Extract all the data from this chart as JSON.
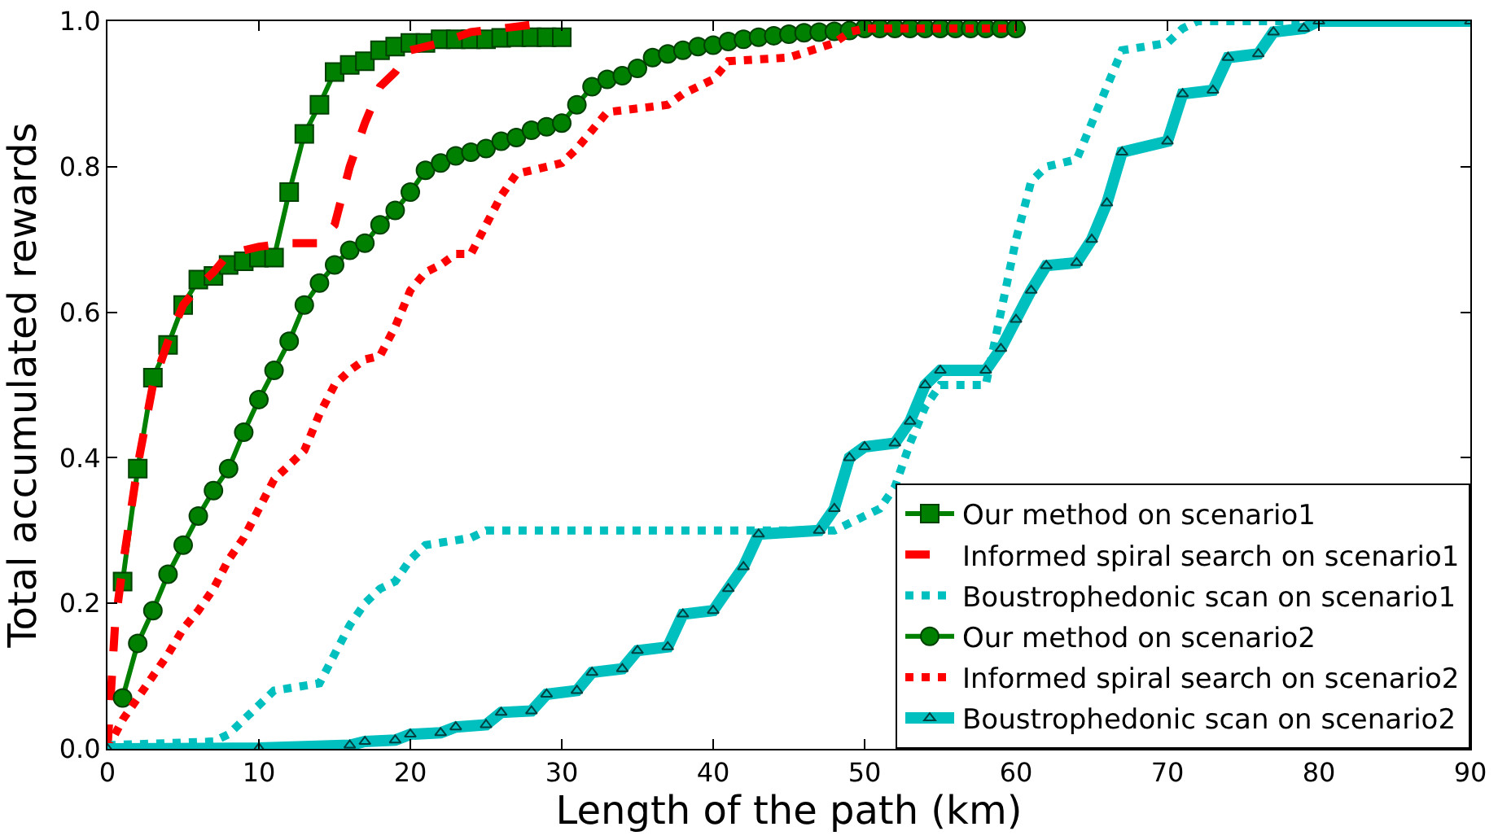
{
  "chart_data": {
    "type": "line",
    "xlabel": "Length of the path (km)",
    "ylabel": "Total accumulated rewards",
    "xlim": [
      0,
      90
    ],
    "xticks": [
      0,
      10,
      20,
      30,
      40,
      50,
      60,
      70,
      80,
      90
    ],
    "ylim": [
      0,
      1
    ],
    "yticks": [
      {
        "value": 0,
        "label": "0.0"
      },
      {
        "value": 0.2,
        "label": "0.2"
      },
      {
        "value": 0.4,
        "label": "0.4"
      },
      {
        "value": 0.6,
        "label": "0.6"
      },
      {
        "value": 0.8,
        "label": "0.8"
      },
      {
        "value": 1,
        "label": "1.0"
      }
    ],
    "grid": false,
    "legend": "bottom right",
    "series": [
      {
        "name": "Our method on scenario1",
        "color": "#008000",
        "marker": "square",
        "line_style": "solid",
        "x": [
          1,
          2,
          3,
          4,
          5,
          6,
          7,
          8,
          9,
          10,
          11,
          12,
          13,
          14,
          15,
          16,
          17,
          18,
          19,
          20,
          21,
          22,
          23,
          24,
          25,
          26,
          27,
          28,
          29,
          30
        ],
        "values": [
          0.23,
          0.385,
          0.51,
          0.555,
          0.61,
          0.645,
          0.65,
          0.665,
          0.67,
          0.675,
          0.675,
          0.765,
          0.845,
          0.885,
          0.93,
          0.94,
          0.945,
          0.96,
          0.965,
          0.97,
          0.97,
          0.975,
          0.975,
          0.975,
          0.975,
          0.977,
          0.978,
          0.978,
          0.978,
          0.978
        ]
      },
      {
        "name": "Informed spiral search on scenario1",
        "color": "#ff0000",
        "marker": "none",
        "line_style": "dashed",
        "x": [
          0,
          0.5,
          1,
          2,
          3,
          4,
          5,
          6,
          7,
          8,
          9,
          10,
          12,
          14,
          15,
          16,
          17,
          18,
          19,
          20,
          22,
          24,
          26,
          28,
          29
        ],
        "values": [
          0,
          0.17,
          0.25,
          0.39,
          0.5,
          0.56,
          0.61,
          0.635,
          0.655,
          0.68,
          0.685,
          0.69,
          0.695,
          0.695,
          0.72,
          0.8,
          0.86,
          0.91,
          0.93,
          0.96,
          0.97,
          0.985,
          0.99,
          0.995,
          1
        ]
      },
      {
        "name": "Boustrophedonic scan on scenario1",
        "color": "#00bfbf",
        "marker": "none",
        "line_style": "dotted",
        "x": [
          0,
          7,
          8,
          9,
          10,
          11,
          14,
          15,
          16,
          17,
          18,
          19,
          20,
          21,
          24,
          25,
          48,
          49,
          51,
          52,
          53,
          54,
          55,
          58,
          59,
          60,
          61,
          62,
          64,
          65,
          66,
          67,
          70,
          71,
          72,
          90
        ],
        "values": [
          0.005,
          0.01,
          0.02,
          0.04,
          0.06,
          0.08,
          0.09,
          0.13,
          0.17,
          0.2,
          0.22,
          0.23,
          0.26,
          0.28,
          0.29,
          0.3,
          0.3,
          0.31,
          0.33,
          0.36,
          0.42,
          0.47,
          0.5,
          0.5,
          0.6,
          0.7,
          0.78,
          0.8,
          0.81,
          0.86,
          0.91,
          0.96,
          0.97,
          0.99,
          1,
          1
        ]
      },
      {
        "name": "Our method on scenario2",
        "color": "#008000",
        "marker": "circle",
        "line_style": "solid",
        "x": [
          1,
          2,
          3,
          4,
          5,
          6,
          7,
          8,
          9,
          10,
          11,
          12,
          13,
          14,
          15,
          16,
          17,
          18,
          19,
          20,
          21,
          22,
          23,
          24,
          25,
          26,
          27,
          28,
          29,
          30,
          31,
          32,
          33,
          34,
          35,
          36,
          37,
          38,
          39,
          40,
          41,
          42,
          43,
          44,
          45,
          46,
          47,
          48,
          49,
          50,
          51,
          52,
          53,
          54,
          55,
          56,
          57,
          58,
          59,
          60
        ],
        "values": [
          0.07,
          0.145,
          0.19,
          0.24,
          0.28,
          0.32,
          0.355,
          0.385,
          0.435,
          0.48,
          0.52,
          0.56,
          0.61,
          0.64,
          0.665,
          0.685,
          0.695,
          0.72,
          0.74,
          0.765,
          0.795,
          0.805,
          0.815,
          0.82,
          0.825,
          0.835,
          0.84,
          0.85,
          0.855,
          0.86,
          0.885,
          0.91,
          0.92,
          0.925,
          0.935,
          0.95,
          0.955,
          0.96,
          0.965,
          0.967,
          0.972,
          0.975,
          0.978,
          0.98,
          0.982,
          0.984,
          0.985,
          0.986,
          0.987,
          0.99,
          0.99,
          0.99,
          0.99,
          0.99,
          0.99,
          0.99,
          0.99,
          0.99,
          0.99,
          0.99
        ]
      },
      {
        "name": "Informed spiral search on scenario2",
        "color": "#ff0000",
        "marker": "none",
        "line_style": "dotted",
        "x": [
          0,
          1,
          2,
          3,
          4,
          5,
          6,
          7,
          8,
          9,
          10,
          11,
          12,
          13,
          14,
          15,
          16,
          17,
          18,
          19,
          20,
          21,
          22,
          23,
          24,
          25,
          26,
          27,
          28,
          29,
          30,
          31,
          32,
          33,
          35,
          37,
          38,
          40,
          41,
          45,
          48,
          49,
          50,
          60
        ],
        "values": [
          0,
          0.04,
          0.07,
          0.1,
          0.13,
          0.165,
          0.19,
          0.22,
          0.26,
          0.29,
          0.33,
          0.37,
          0.39,
          0.41,
          0.46,
          0.5,
          0.52,
          0.535,
          0.54,
          0.58,
          0.63,
          0.655,
          0.665,
          0.68,
          0.68,
          0.72,
          0.76,
          0.79,
          0.795,
          0.8,
          0.805,
          0.825,
          0.85,
          0.875,
          0.88,
          0.885,
          0.9,
          0.92,
          0.945,
          0.95,
          0.97,
          0.985,
          0.99,
          0.99
        ]
      },
      {
        "name": "Boustrophedonic scan on scenario2",
        "color": "#00bfbf",
        "marker": "triangle",
        "line_style": "solid",
        "x": [
          0,
          10,
          16,
          17,
          19,
          20,
          22,
          23,
          25,
          26,
          28,
          29,
          31,
          32,
          34,
          35,
          37,
          38,
          40,
          41,
          42,
          43,
          47,
          48,
          49,
          50,
          52,
          53,
          54,
          55,
          58,
          59,
          60,
          61,
          62,
          64,
          65,
          66,
          67,
          70,
          71,
          73,
          74,
          76,
          77,
          79,
          80,
          90
        ],
        "values": [
          0,
          0.001,
          0.005,
          0.01,
          0.012,
          0.02,
          0.022,
          0.03,
          0.033,
          0.05,
          0.052,
          0.075,
          0.08,
          0.105,
          0.11,
          0.135,
          0.14,
          0.185,
          0.19,
          0.22,
          0.25,
          0.295,
          0.3,
          0.33,
          0.4,
          0.415,
          0.42,
          0.45,
          0.5,
          0.52,
          0.52,
          0.55,
          0.59,
          0.63,
          0.664,
          0.668,
          0.7,
          0.75,
          0.82,
          0.835,
          0.9,
          0.905,
          0.95,
          0.955,
          0.985,
          0.99,
          1,
          1
        ]
      }
    ]
  }
}
